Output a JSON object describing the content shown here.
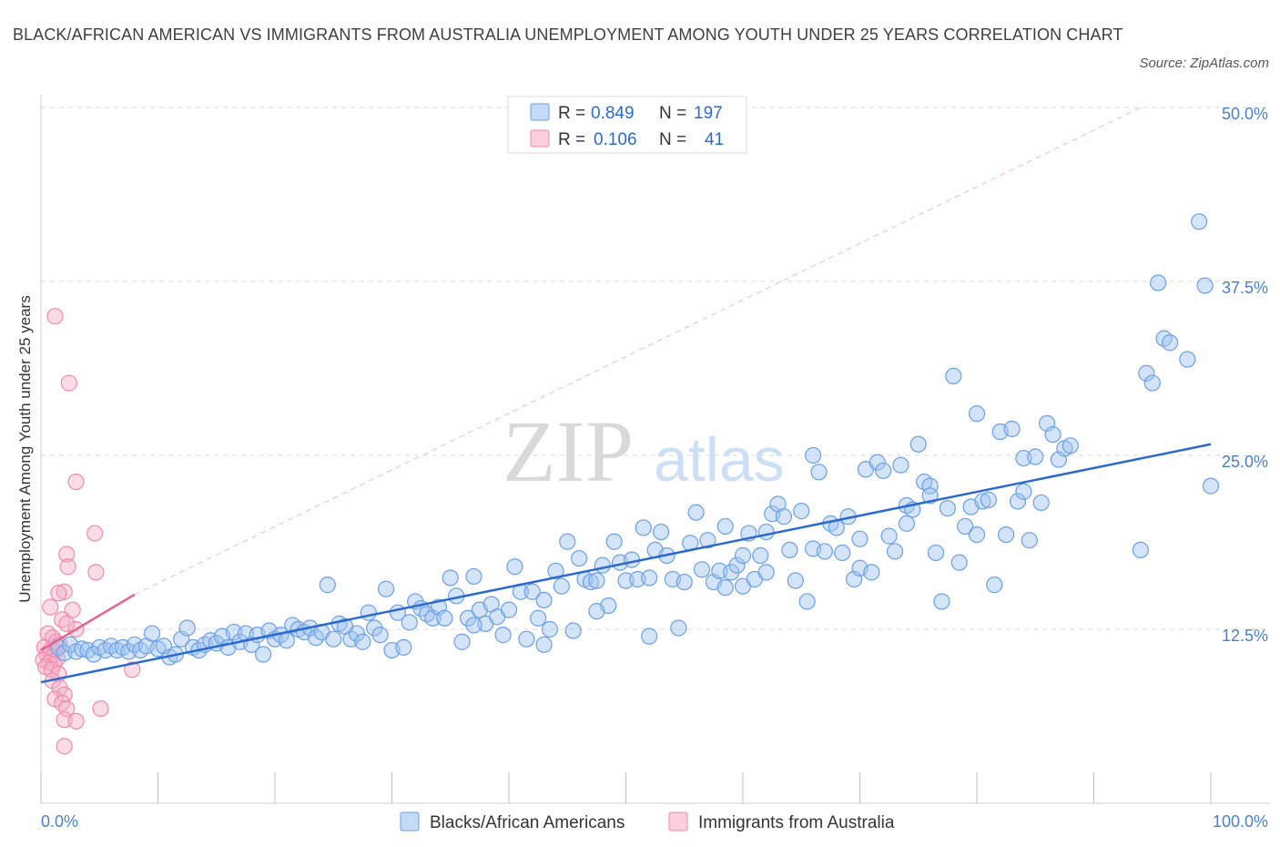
{
  "title": "BLACK/AFRICAN AMERICAN VS IMMIGRANTS FROM AUSTRALIA UNEMPLOYMENT AMONG YOUTH UNDER 25 YEARS CORRELATION CHART",
  "source": "Source: ZipAtlas.com",
  "watermark": {
    "zip": "ZIP",
    "atlas": "atlas"
  },
  "colors": {
    "blue": "#6a9fe6",
    "blue_line": "#2a6ad0",
    "pink": "#f08aaa",
    "pink_line": "#e8608c",
    "grid": "#d8d8d8",
    "axis_text": "#4a7fd0"
  },
  "legend": {
    "rows": [
      {
        "r_label": "R =",
        "r_value": "0.849",
        "n_label": "N =",
        "n_value": "197"
      },
      {
        "r_label": "R =",
        "r_value": "0.106",
        "n_label": "N =",
        "n_value": "41"
      }
    ]
  },
  "bottom_legend": [
    "Blacks/African Americans",
    "Immigrants from Australia"
  ],
  "chart_data": {
    "type": "scatter",
    "title": "BLACK/AFRICAN AMERICAN VS IMMIGRANTS FROM AUSTRALIA UNEMPLOYMENT AMONG YOUTH UNDER 25 YEARS CORRELATION CHART",
    "xlabel": "",
    "ylabel": "Unemployment Among Youth under 25 years",
    "xlim": [
      0,
      100
    ],
    "ylim": [
      0,
      50
    ],
    "x_tick_labels": [
      "0.0%",
      "100.0%"
    ],
    "y_tick_labels": [
      "12.5%",
      "25.0%",
      "37.5%",
      "50.0%"
    ],
    "y_ticks": [
      12.5,
      25,
      37.5,
      50
    ],
    "grid": true,
    "legend_position": "top-center",
    "series": [
      {
        "name": "Blacks/African Americans",
        "color": "#6a9fe6",
        "r": 0.849,
        "n": 197,
        "trend": {
          "x": [
            0,
            100
          ],
          "y": [
            8.7,
            25.8
          ]
        },
        "points": [
          [
            1.5,
            11.2
          ],
          [
            2.0,
            10.8
          ],
          [
            2.5,
            11.4
          ],
          [
            3.0,
            10.9
          ],
          [
            3.5,
            11.1
          ],
          [
            4.0,
            11.0
          ],
          [
            4.5,
            10.7
          ],
          [
            5.0,
            11.2
          ],
          [
            5.5,
            11.0
          ],
          [
            6.0,
            11.3
          ],
          [
            6.5,
            11.0
          ],
          [
            7.0,
            11.2
          ],
          [
            7.5,
            10.9
          ],
          [
            8.0,
            11.4
          ],
          [
            8.5,
            11.0
          ],
          [
            9.0,
            11.3
          ],
          [
            9.5,
            12.2
          ],
          [
            10.0,
            11.1
          ],
          [
            10.5,
            11.3
          ],
          [
            11.0,
            10.5
          ],
          [
            11.5,
            10.7
          ],
          [
            12.0,
            11.8
          ],
          [
            12.5,
            12.6
          ],
          [
            13.0,
            11.2
          ],
          [
            13.5,
            11.0
          ],
          [
            14.0,
            11.4
          ],
          [
            14.5,
            11.7
          ],
          [
            15.0,
            11.5
          ],
          [
            15.5,
            12.0
          ],
          [
            16.0,
            11.2
          ],
          [
            16.5,
            12.3
          ],
          [
            17.0,
            11.6
          ],
          [
            17.5,
            12.2
          ],
          [
            18.0,
            11.4
          ],
          [
            18.5,
            12.1
          ],
          [
            19.0,
            10.7
          ],
          [
            19.5,
            12.4
          ],
          [
            20.0,
            11.8
          ],
          [
            20.5,
            12.1
          ],
          [
            21.0,
            11.7
          ],
          [
            21.5,
            12.8
          ],
          [
            22.0,
            12.5
          ],
          [
            22.5,
            12.3
          ],
          [
            23.0,
            12.6
          ],
          [
            23.5,
            11.9
          ],
          [
            24.0,
            12.3
          ],
          [
            24.5,
            15.7
          ],
          [
            25.0,
            11.8
          ],
          [
            25.5,
            12.9
          ],
          [
            26.0,
            12.7
          ],
          [
            26.5,
            11.8
          ],
          [
            27.0,
            12.2
          ],
          [
            27.5,
            11.6
          ],
          [
            28.0,
            13.7
          ],
          [
            28.5,
            12.6
          ],
          [
            29.0,
            12.1
          ],
          [
            29.5,
            15.4
          ],
          [
            30.0,
            11.0
          ],
          [
            30.5,
            13.7
          ],
          [
            31.0,
            11.2
          ],
          [
            31.5,
            13.0
          ],
          [
            32.0,
            14.5
          ],
          [
            32.5,
            14.0
          ],
          [
            33.0,
            13.6
          ],
          [
            33.5,
            13.3
          ],
          [
            34.0,
            14.1
          ],
          [
            34.5,
            13.3
          ],
          [
            35.0,
            16.2
          ],
          [
            35.5,
            14.9
          ],
          [
            36.0,
            11.6
          ],
          [
            36.5,
            13.3
          ],
          [
            37.0,
            16.3
          ],
          [
            37.5,
            13.9
          ],
          [
            38.0,
            12.9
          ],
          [
            38.5,
            14.3
          ],
          [
            39.0,
            13.4
          ],
          [
            39.5,
            12.1
          ],
          [
            40.0,
            13.9
          ],
          [
            40.5,
            17.0
          ],
          [
            41.0,
            15.2
          ],
          [
            41.5,
            11.8
          ],
          [
            42.0,
            15.2
          ],
          [
            42.5,
            13.3
          ],
          [
            43.0,
            14.6
          ],
          [
            43.5,
            12.5
          ],
          [
            44.0,
            16.7
          ],
          [
            44.5,
            15.6
          ],
          [
            45.0,
            18.8
          ],
          [
            45.5,
            12.4
          ],
          [
            46.0,
            17.6
          ],
          [
            46.5,
            16.1
          ],
          [
            47.0,
            15.9
          ],
          [
            47.5,
            16.0
          ],
          [
            48.0,
            17.1
          ],
          [
            48.5,
            14.2
          ],
          [
            49.0,
            18.8
          ],
          [
            49.5,
            17.3
          ],
          [
            50.0,
            16.0
          ],
          [
            50.5,
            17.5
          ],
          [
            51.0,
            16.1
          ],
          [
            51.5,
            19.8
          ],
          [
            52.0,
            16.2
          ],
          [
            52.5,
            18.2
          ],
          [
            53.0,
            19.5
          ],
          [
            53.5,
            17.8
          ],
          [
            54.0,
            16.1
          ],
          [
            54.5,
            12.6
          ],
          [
            55.0,
            15.9
          ],
          [
            55.5,
            18.7
          ],
          [
            56.0,
            20.9
          ],
          [
            56.5,
            16.8
          ],
          [
            57.0,
            18.9
          ],
          [
            57.5,
            15.9
          ],
          [
            58.0,
            16.7
          ],
          [
            58.5,
            19.9
          ],
          [
            59.0,
            16.6
          ],
          [
            59.5,
            17.1
          ],
          [
            60.0,
            15.6
          ],
          [
            60.5,
            19.4
          ],
          [
            61.0,
            16.1
          ],
          [
            61.5,
            17.8
          ],
          [
            62.0,
            16.6
          ],
          [
            62.5,
            20.8
          ],
          [
            63.0,
            21.5
          ],
          [
            63.5,
            20.6
          ],
          [
            64.0,
            18.2
          ],
          [
            64.5,
            16.0
          ],
          [
            65.0,
            21.0
          ],
          [
            65.5,
            14.5
          ],
          [
            66.0,
            18.3
          ],
          [
            66.5,
            23.8
          ],
          [
            67.0,
            18.1
          ],
          [
            67.5,
            20.1
          ],
          [
            68.0,
            19.8
          ],
          [
            68.5,
            18.0
          ],
          [
            69.0,
            20.6
          ],
          [
            69.5,
            16.1
          ],
          [
            70.0,
            16.9
          ],
          [
            70.5,
            24.0
          ],
          [
            71.0,
            16.6
          ],
          [
            71.5,
            24.5
          ],
          [
            72.0,
            23.9
          ],
          [
            72.5,
            19.2
          ],
          [
            73.0,
            18.1
          ],
          [
            73.5,
            24.3
          ],
          [
            74.0,
            21.4
          ],
          [
            74.5,
            21.1
          ],
          [
            75.0,
            25.8
          ],
          [
            75.5,
            23.1
          ],
          [
            76.0,
            22.8
          ],
          [
            76.5,
            18.0
          ],
          [
            77.0,
            14.5
          ],
          [
            77.5,
            21.2
          ],
          [
            78.0,
            30.7
          ],
          [
            78.5,
            17.3
          ],
          [
            79.0,
            19.9
          ],
          [
            79.5,
            21.3
          ],
          [
            80.0,
            19.3
          ],
          [
            80.5,
            21.7
          ],
          [
            81.0,
            21.8
          ],
          [
            81.5,
            15.7
          ],
          [
            82.0,
            26.7
          ],
          [
            82.5,
            19.3
          ],
          [
            83.0,
            26.9
          ],
          [
            83.5,
            21.7
          ],
          [
            84.0,
            24.8
          ],
          [
            84.5,
            18.9
          ],
          [
            85.0,
            24.9
          ],
          [
            85.5,
            21.6
          ],
          [
            86.0,
            27.3
          ],
          [
            86.5,
            26.5
          ],
          [
            87.0,
            24.7
          ],
          [
            87.5,
            25.5
          ],
          [
            88.0,
            25.7
          ],
          [
            94.0,
            18.2
          ],
          [
            94.5,
            30.9
          ],
          [
            95.0,
            30.2
          ],
          [
            96.0,
            33.4
          ],
          [
            96.5,
            33.1
          ],
          [
            95.5,
            37.4
          ],
          [
            98.0,
            31.9
          ],
          [
            99.0,
            41.8
          ],
          [
            99.5,
            37.2
          ],
          [
            100.0,
            22.8
          ],
          [
            66.0,
            25.0
          ],
          [
            80.0,
            28.0
          ],
          [
            60.0,
            17.8
          ],
          [
            52.0,
            12.0
          ],
          [
            47.5,
            13.8
          ],
          [
            37.0,
            12.8
          ],
          [
            43.0,
            11.4
          ],
          [
            58.5,
            15.5
          ],
          [
            62.0,
            19.5
          ],
          [
            70.0,
            19.0
          ],
          [
            74.0,
            20.1
          ],
          [
            76.0,
            22.1
          ],
          [
            84.0,
            22.4
          ]
        ]
      },
      {
        "name": "Immigrants from Australia",
        "color": "#f08aaa",
        "r": 0.106,
        "n": 41,
        "trend": {
          "x": [
            0,
            8
          ],
          "y": [
            11.0,
            15.0
          ]
        },
        "points": [
          [
            1.2,
            35.0
          ],
          [
            2.4,
            30.2
          ],
          [
            3.0,
            23.1
          ],
          [
            4.6,
            19.4
          ],
          [
            4.7,
            16.6
          ],
          [
            2.2,
            17.9
          ],
          [
            2.3,
            17.0
          ],
          [
            2.0,
            15.2
          ],
          [
            1.5,
            15.1
          ],
          [
            0.8,
            14.1
          ],
          [
            2.7,
            13.9
          ],
          [
            1.8,
            13.2
          ],
          [
            2.2,
            12.9
          ],
          [
            3.0,
            12.5
          ],
          [
            0.6,
            12.2
          ],
          [
            1.0,
            11.9
          ],
          [
            1.3,
            11.6
          ],
          [
            1.6,
            11.4
          ],
          [
            0.3,
            11.2
          ],
          [
            0.8,
            11.0
          ],
          [
            1.2,
            10.9
          ],
          [
            0.5,
            10.7
          ],
          [
            0.9,
            10.5
          ],
          [
            1.4,
            10.4
          ],
          [
            0.2,
            10.3
          ],
          [
            0.7,
            10.1
          ],
          [
            1.1,
            10.0
          ],
          [
            0.4,
            9.8
          ],
          [
            0.9,
            9.6
          ],
          [
            1.5,
            9.3
          ],
          [
            1.0,
            8.8
          ],
          [
            1.6,
            8.3
          ],
          [
            2.0,
            7.8
          ],
          [
            1.2,
            7.5
          ],
          [
            1.8,
            7.2
          ],
          [
            2.2,
            6.8
          ],
          [
            5.1,
            6.8
          ],
          [
            2.0,
            6.0
          ],
          [
            3.0,
            5.9
          ],
          [
            2.0,
            4.1
          ],
          [
            7.8,
            9.6
          ]
        ]
      }
    ]
  }
}
